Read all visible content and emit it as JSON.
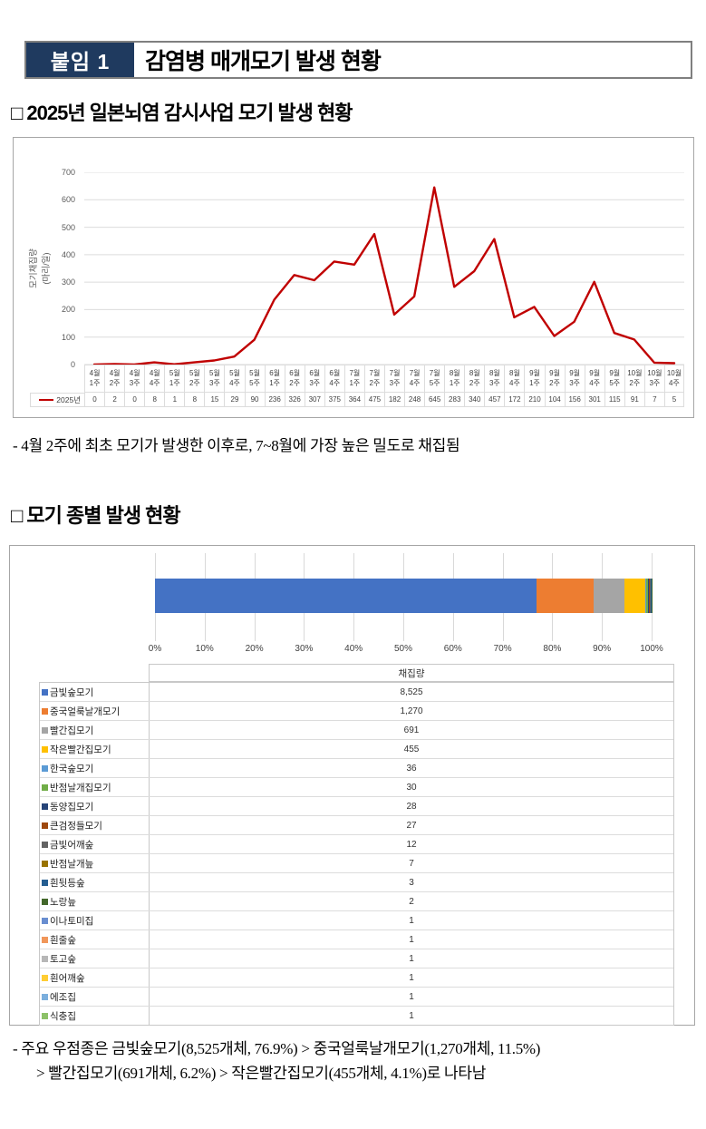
{
  "header": {
    "badge": "붙임 1",
    "title": "감염병 매개모기 발생 현황"
  },
  "section1": {
    "title": "□ 2025년 일본뇌염 감시사업 모기 발생 현황",
    "note": "- 4월 2주에 최초 모기가 발생한 이후로, 7~8월에 가장 높은 밀도로 채집됨"
  },
  "section2": {
    "title": "□ 모기 종별 발생 현황",
    "note_line1": "- 주요 우점종은 금빛숲모기(8,525개체, 76.9%) > 중국얼룩날개모기(1,270개체, 11.5%)",
    "note_line2": "> 빨간집모기(691개체, 6.2%) > 작은빨간집모기(455개체, 4.1%)로 나타남"
  },
  "chart_data": [
    {
      "type": "line",
      "y_axis_title_line1": "모기채집량",
      "y_axis_title_line2": "(마리/일)",
      "ylim": [
        0,
        700
      ],
      "ytick_step": 100,
      "grid": true,
      "legend_position": "left-of-table",
      "series_name": "2025년",
      "line_color": "#c00000",
      "categories_month": [
        "4월",
        "4월",
        "4월",
        "4월",
        "5월",
        "5월",
        "5월",
        "5월",
        "5월",
        "6월",
        "6월",
        "6월",
        "6월",
        "7월",
        "7월",
        "7월",
        "7월",
        "7월",
        "8월",
        "8월",
        "8월",
        "8월",
        "9월",
        "9월",
        "9월",
        "9월",
        "9월",
        "10월",
        "10월",
        "10월"
      ],
      "categories_week": [
        "1주",
        "2주",
        "3주",
        "4주",
        "1주",
        "2주",
        "3주",
        "4주",
        "5주",
        "1주",
        "2주",
        "3주",
        "4주",
        "1주",
        "2주",
        "3주",
        "4주",
        "5주",
        "1주",
        "2주",
        "3주",
        "4주",
        "1주",
        "2주",
        "3주",
        "4주",
        "5주",
        "2주",
        "3주",
        "4주"
      ],
      "values": [
        0,
        2,
        0,
        8,
        1,
        8,
        15,
        29,
        90,
        236,
        326,
        307,
        375,
        364,
        475,
        182,
        248,
        645,
        283,
        340,
        457,
        172,
        210,
        104,
        156,
        301,
        115,
        91,
        7,
        5
      ]
    },
    {
      "type": "stacked-bar",
      "value_header": "채집량",
      "xticks": [
        "0%",
        "10%",
        "20%",
        "30%",
        "40%",
        "50%",
        "60%",
        "70%",
        "80%",
        "90%",
        "100%"
      ],
      "xlim": [
        0,
        100
      ],
      "grid": true,
      "series": [
        {
          "name": "금빛숲모기",
          "value": 8525,
          "display": "8,525",
          "color": "#4472c4"
        },
        {
          "name": "중국얼룩날개모기",
          "value": 1270,
          "display": "1,270",
          "color": "#ed7d31"
        },
        {
          "name": "빨간집모기",
          "value": 691,
          "display": "691",
          "color": "#a5a5a5"
        },
        {
          "name": "작은빨간집모기",
          "value": 455,
          "display": "455",
          "color": "#ffc000"
        },
        {
          "name": "한국숲모기",
          "value": 36,
          "display": "36",
          "color": "#5b9bd5"
        },
        {
          "name": "반점날개집모기",
          "value": 30,
          "display": "30",
          "color": "#70ad47"
        },
        {
          "name": "동양집모기",
          "value": 28,
          "display": "28",
          "color": "#264478"
        },
        {
          "name": "큰검정들모기",
          "value": 27,
          "display": "27",
          "color": "#9e480e"
        },
        {
          "name": "금빛어깨숲",
          "value": 12,
          "display": "12",
          "color": "#636363"
        },
        {
          "name": "반점날개늪",
          "value": 7,
          "display": "7",
          "color": "#997300"
        },
        {
          "name": "흰뒷등숲",
          "value": 3,
          "display": "3",
          "color": "#255e91"
        },
        {
          "name": "노랑늪",
          "value": 2,
          "display": "2",
          "color": "#43682b"
        },
        {
          "name": "이나토미집",
          "value": 1,
          "display": "1",
          "color": "#698ed0"
        },
        {
          "name": "흰줄숲",
          "value": 1,
          "display": "1",
          "color": "#f1975a"
        },
        {
          "name": "토고숲",
          "value": 1,
          "display": "1",
          "color": "#b7b7b7"
        },
        {
          "name": "흰어깨숲",
          "value": 1,
          "display": "1",
          "color": "#ffcd33"
        },
        {
          "name": "에조집",
          "value": 1,
          "display": "1",
          "color": "#7cafdd"
        },
        {
          "name": "식충집",
          "value": 1,
          "display": "1",
          "color": "#8cc168"
        }
      ]
    }
  ]
}
